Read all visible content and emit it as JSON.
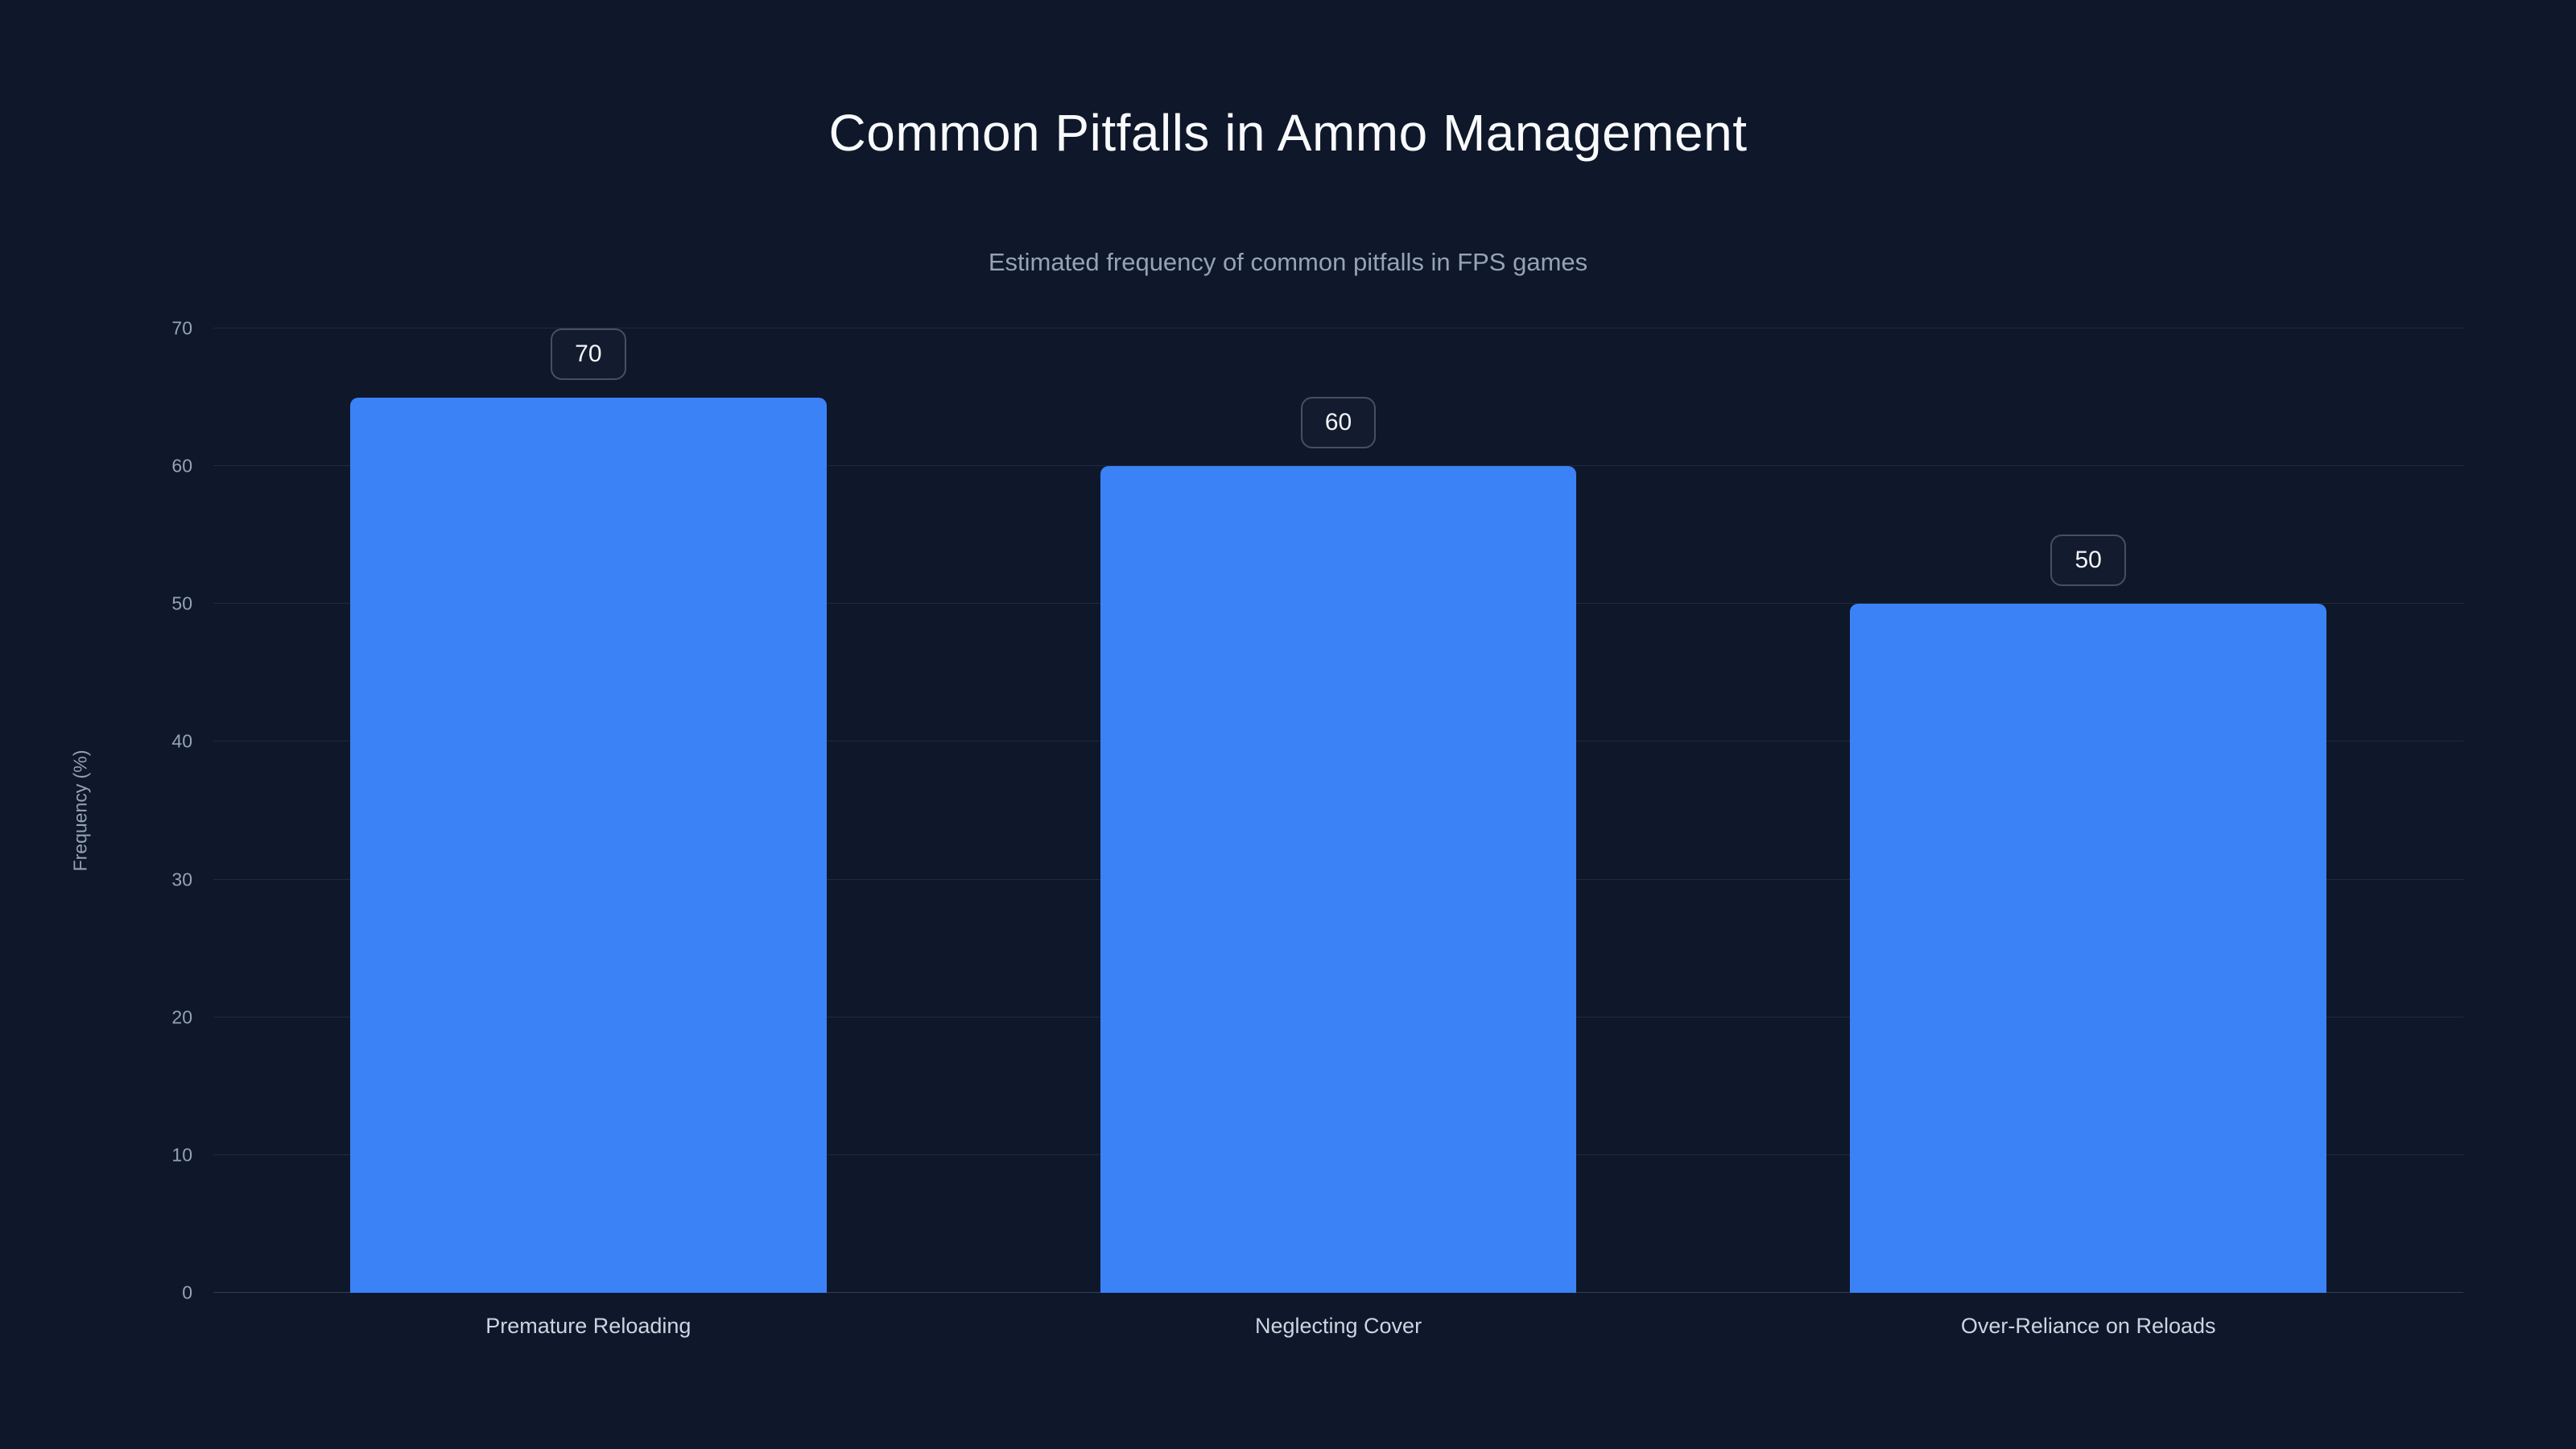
{
  "title": "Common Pitfalls in Ammo Management",
  "subtitle": "Estimated frequency of common pitfalls in FPS games",
  "chart_data": {
    "type": "bar",
    "title": "Common Pitfalls in Ammo Management",
    "subtitle": "Estimated frequency of common pitfalls in FPS games",
    "categories": [
      "Premature Reloading",
      "Neglecting Cover",
      "Over-Reliance on Reloads"
    ],
    "values": [
      70,
      60,
      50
    ],
    "value_labels": [
      "70",
      "60",
      "50"
    ],
    "xlabel": "",
    "ylabel": "Frequency (%)",
    "ylim": [
      0,
      70
    ],
    "yticks": [
      0,
      10,
      20,
      30,
      40,
      50,
      60,
      70
    ],
    "grid": "horizontal",
    "legend": "none",
    "colors": {
      "bar": "#3b82f6",
      "background": "#0f172a",
      "grid": "rgba(148,163,184,0.14)",
      "tick_text": "#94a3b8",
      "title_text": "#f8fafc"
    }
  }
}
